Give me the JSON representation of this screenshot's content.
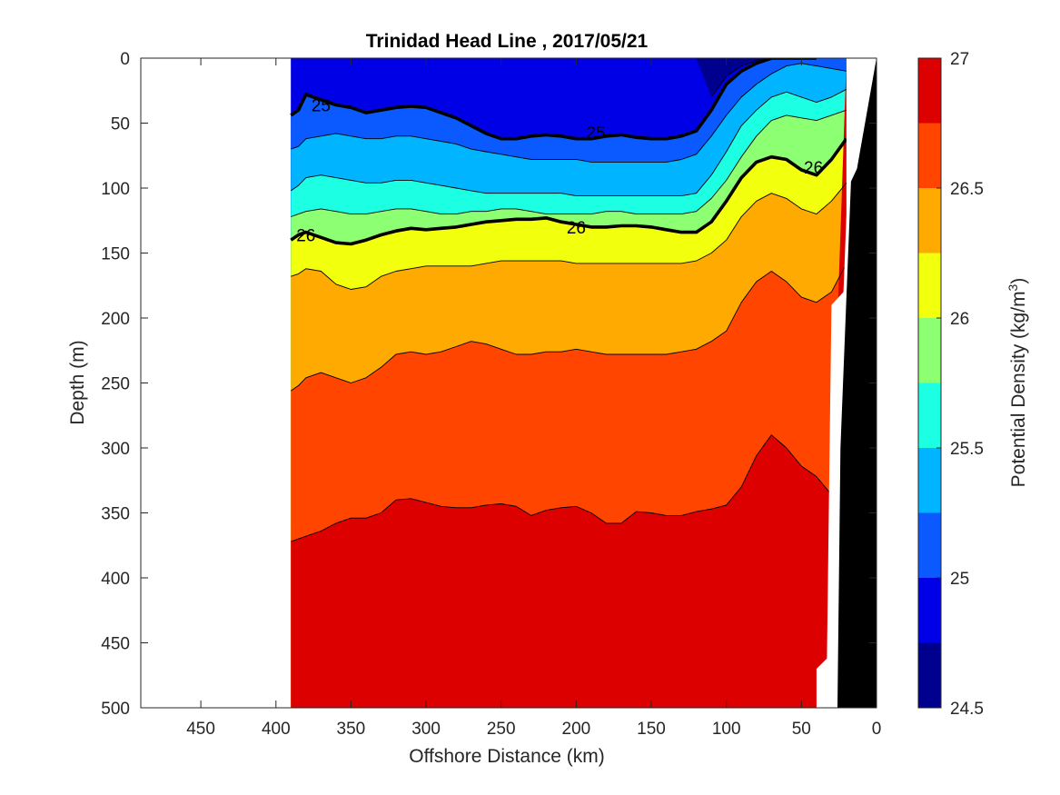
{
  "chart_data": {
    "type": "contour",
    "title": "Trinidad Head Line , 2017/05/21",
    "xlabel": "Offshore Distance (km)",
    "ylabel": "Depth (m)",
    "xlim": [
      490,
      0
    ],
    "ylim": [
      500,
      0
    ],
    "x_direction": "reversed",
    "y_direction": "reversed",
    "x_ticks": [
      450,
      400,
      350,
      300,
      250,
      200,
      150,
      100,
      50,
      0
    ],
    "y_ticks": [
      0,
      50,
      100,
      150,
      200,
      250,
      300,
      350,
      400,
      450,
      500
    ],
    "colorbar": {
      "label": "Potential Density (kg/m",
      "label_superscript": "3",
      "label_suffix": ")",
      "range": [
        24.5,
        27
      ],
      "ticks": [
        24.5,
        25,
        25.5,
        26,
        26.5,
        27
      ],
      "tick_labels": [
        "24.5",
        "25",
        "25.5",
        "26",
        "26.5",
        "27"
      ],
      "levels": [
        24.5,
        24.75,
        25,
        25.25,
        25.5,
        25.75,
        26,
        26.25,
        26.5,
        26.75,
        27
      ],
      "colors": [
        "#00008f",
        "#0000e6",
        "#0a5aff",
        "#00b4ff",
        "#1cffe3",
        "#8dff72",
        "#f2ff0d",
        "#ffaa00",
        "#ff4500",
        "#dc0000"
      ]
    },
    "section_x_range_km": [
      390,
      20
    ],
    "contour_x_km": [
      390,
      385,
      380,
      370,
      360,
      350,
      340,
      330,
      320,
      310,
      300,
      290,
      280,
      270,
      260,
      250,
      240,
      230,
      220,
      210,
      200,
      190,
      180,
      170,
      160,
      150,
      140,
      130,
      120,
      110,
      100,
      90,
      80,
      70,
      60,
      50,
      40,
      30,
      20
    ],
    "contours": [
      {
        "level": 24.75,
        "depths_m": [
          null,
          null,
          null,
          null,
          null,
          null,
          null,
          null,
          null,
          null,
          null,
          null,
          null,
          null,
          null,
          null,
          null,
          null,
          null,
          null,
          null,
          null,
          null,
          null,
          null,
          null,
          null,
          null,
          null,
          30,
          14,
          6,
          2,
          0,
          0,
          0,
          0,
          null,
          null
        ]
      },
      {
        "level": 25,
        "depths_m": [
          44,
          40,
          28,
          32,
          36,
          38,
          42,
          40,
          38,
          37,
          38,
          42,
          46,
          52,
          58,
          62,
          62,
          60,
          59,
          60,
          62,
          62,
          60,
          59,
          61,
          62,
          62,
          60,
          56,
          40,
          20,
          10,
          4,
          0,
          0,
          0,
          0,
          null,
          null
        ]
      },
      {
        "level": 25.25,
        "depths_m": [
          70,
          68,
          62,
          60,
          58,
          60,
          62,
          62,
          60,
          60,
          62,
          64,
          66,
          70,
          72,
          74,
          76,
          78,
          78,
          78,
          78,
          80,
          80,
          80,
          80,
          80,
          80,
          78,
          74,
          60,
          44,
          30,
          20,
          12,
          6,
          4,
          6,
          8,
          10
        ]
      },
      {
        "level": 25.5,
        "depths_m": [
          102,
          98,
          92,
          90,
          92,
          94,
          96,
          96,
          94,
          94,
          96,
          98,
          100,
          102,
          104,
          104,
          104,
          104,
          104,
          104,
          106,
          106,
          106,
          106,
          106,
          106,
          106,
          106,
          104,
          90,
          72,
          52,
          40,
          30,
          26,
          30,
          34,
          30,
          24
        ]
      },
      {
        "level": 25.75,
        "depths_m": [
          122,
          120,
          118,
          116,
          118,
          120,
          120,
          118,
          116,
          116,
          118,
          120,
          120,
          118,
          118,
          116,
          116,
          118,
          120,
          120,
          120,
          120,
          118,
          118,
          120,
          120,
          120,
          120,
          118,
          108,
          94,
          76,
          60,
          48,
          44,
          46,
          48,
          44,
          40
        ]
      },
      {
        "level": 26,
        "depths_m": [
          140,
          136,
          134,
          138,
          142,
          143,
          140,
          136,
          133,
          131,
          132,
          131,
          130,
          128,
          126,
          125,
          124,
          124,
          123,
          126,
          128,
          130,
          130,
          129,
          129,
          130,
          132,
          134,
          134,
          126,
          110,
          92,
          80,
          76,
          78,
          86,
          90,
          78,
          62
        ]
      },
      {
        "level": 26.25,
        "depths_m": [
          168,
          166,
          162,
          164,
          174,
          178,
          176,
          168,
          164,
          162,
          160,
          160,
          160,
          160,
          158,
          156,
          156,
          156,
          156,
          156,
          158,
          158,
          158,
          158,
          158,
          158,
          158,
          158,
          156,
          150,
          140,
          122,
          110,
          104,
          108,
          116,
          120,
          110,
          96
        ]
      },
      {
        "level": 26.5,
        "depths_m": [
          256,
          252,
          246,
          242,
          246,
          250,
          246,
          238,
          228,
          226,
          228,
          226,
          222,
          218,
          220,
          224,
          228,
          228,
          226,
          226,
          224,
          226,
          228,
          228,
          228,
          228,
          228,
          226,
          224,
          218,
          210,
          188,
          172,
          164,
          172,
          184,
          188,
          180,
          158
        ]
      },
      {
        "level": 26.75,
        "depths_m": [
          372,
          370,
          368,
          364,
          358,
          354,
          354,
          350,
          340,
          339,
          342,
          345,
          346,
          346,
          344,
          343,
          345,
          352,
          348,
          346,
          345,
          350,
          358,
          358,
          349,
          350,
          352,
          352,
          349,
          347,
          344,
          330,
          306,
          290,
          300,
          314,
          322,
          336,
          null
        ]
      }
    ],
    "contour_labels": [
      {
        "text": "25",
        "x_km": 370,
        "depth_m": 36
      },
      {
        "text": "25",
        "x_km": 187,
        "depth_m": 57
      },
      {
        "text": "26",
        "x_km": 380,
        "depth_m": 136
      },
      {
        "text": "26",
        "x_km": 200,
        "depth_m": 130
      },
      {
        "text": "26",
        "x_km": 42,
        "depth_m": 84
      }
    ],
    "grid": false,
    "legend": "colorbar-right"
  }
}
